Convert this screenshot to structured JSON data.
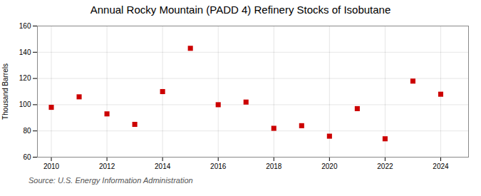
{
  "chart_data": {
    "type": "scatter",
    "title": "Annual Rocky Mountain (PADD 4) Refinery Stocks of Isobutane",
    "ylabel": "Thousand Barrels",
    "source": "Source: U.S. Energy Information Administration",
    "x": [
      2010,
      2011,
      2012,
      2013,
      2014,
      2015,
      2016,
      2017,
      2018,
      2019,
      2020,
      2021,
      2022,
      2023,
      2024
    ],
    "values": [
      98,
      106,
      93,
      85,
      110,
      143,
      100,
      102,
      82,
      84,
      76,
      97,
      74,
      118,
      108
    ],
    "color": "#cc0000",
    "marker": "square",
    "xlim": [
      2009.5,
      2025.0
    ],
    "ylim": [
      60,
      160
    ],
    "xticks": [
      2010,
      2012,
      2014,
      2016,
      2018,
      2020,
      2022,
      2024
    ],
    "yticks": [
      60,
      80,
      100,
      120,
      140,
      160
    ],
    "grid": true
  }
}
